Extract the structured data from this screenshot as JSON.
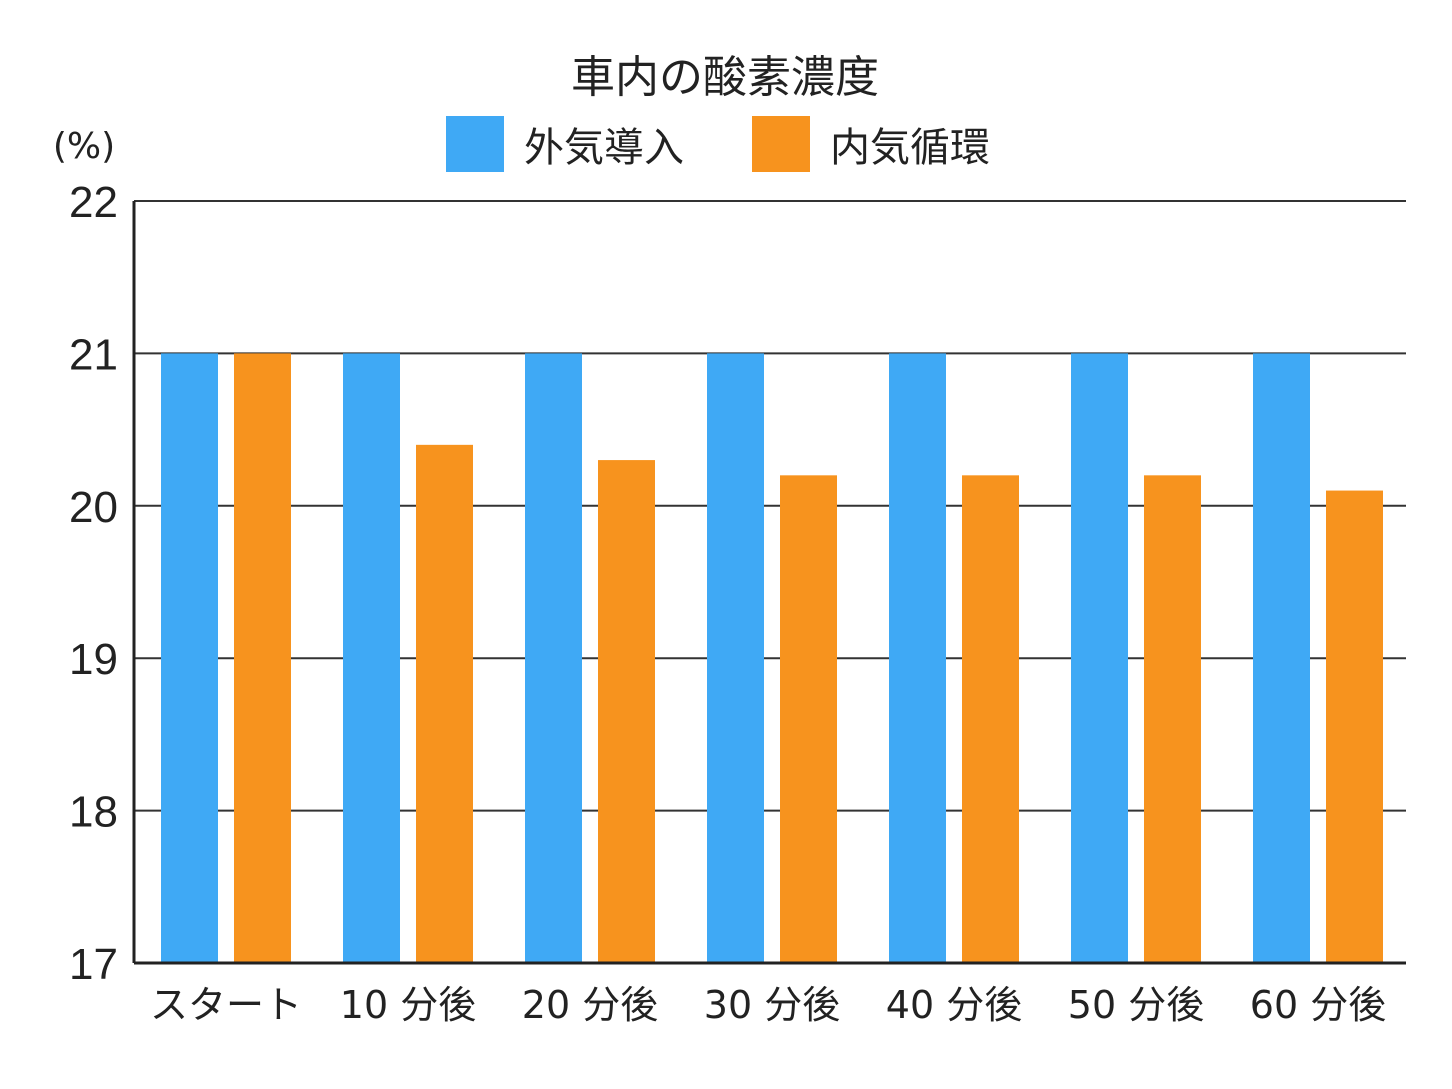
{
  "chart_data": {
    "type": "bar",
    "title": "車内の酸素濃度",
    "unit_label": "(%)",
    "categories": [
      "スタート",
      "10 分後",
      "20 分後",
      "30 分後",
      "40 分後",
      "50 分後",
      "60 分後"
    ],
    "series": [
      {
        "name": "外気導入",
        "color": "#3fa9f5",
        "values": [
          21,
          21,
          21,
          21,
          21,
          21,
          21
        ]
      },
      {
        "name": "内気循環",
        "color": "#f7931e",
        "values": [
          21,
          20.4,
          20.3,
          20.2,
          20.2,
          20.2,
          20.1
        ]
      }
    ],
    "ylim": [
      17,
      22
    ],
    "yticks": [
      17,
      18,
      19,
      20,
      21,
      22
    ],
    "grid": true,
    "legend_position": "top-center"
  }
}
